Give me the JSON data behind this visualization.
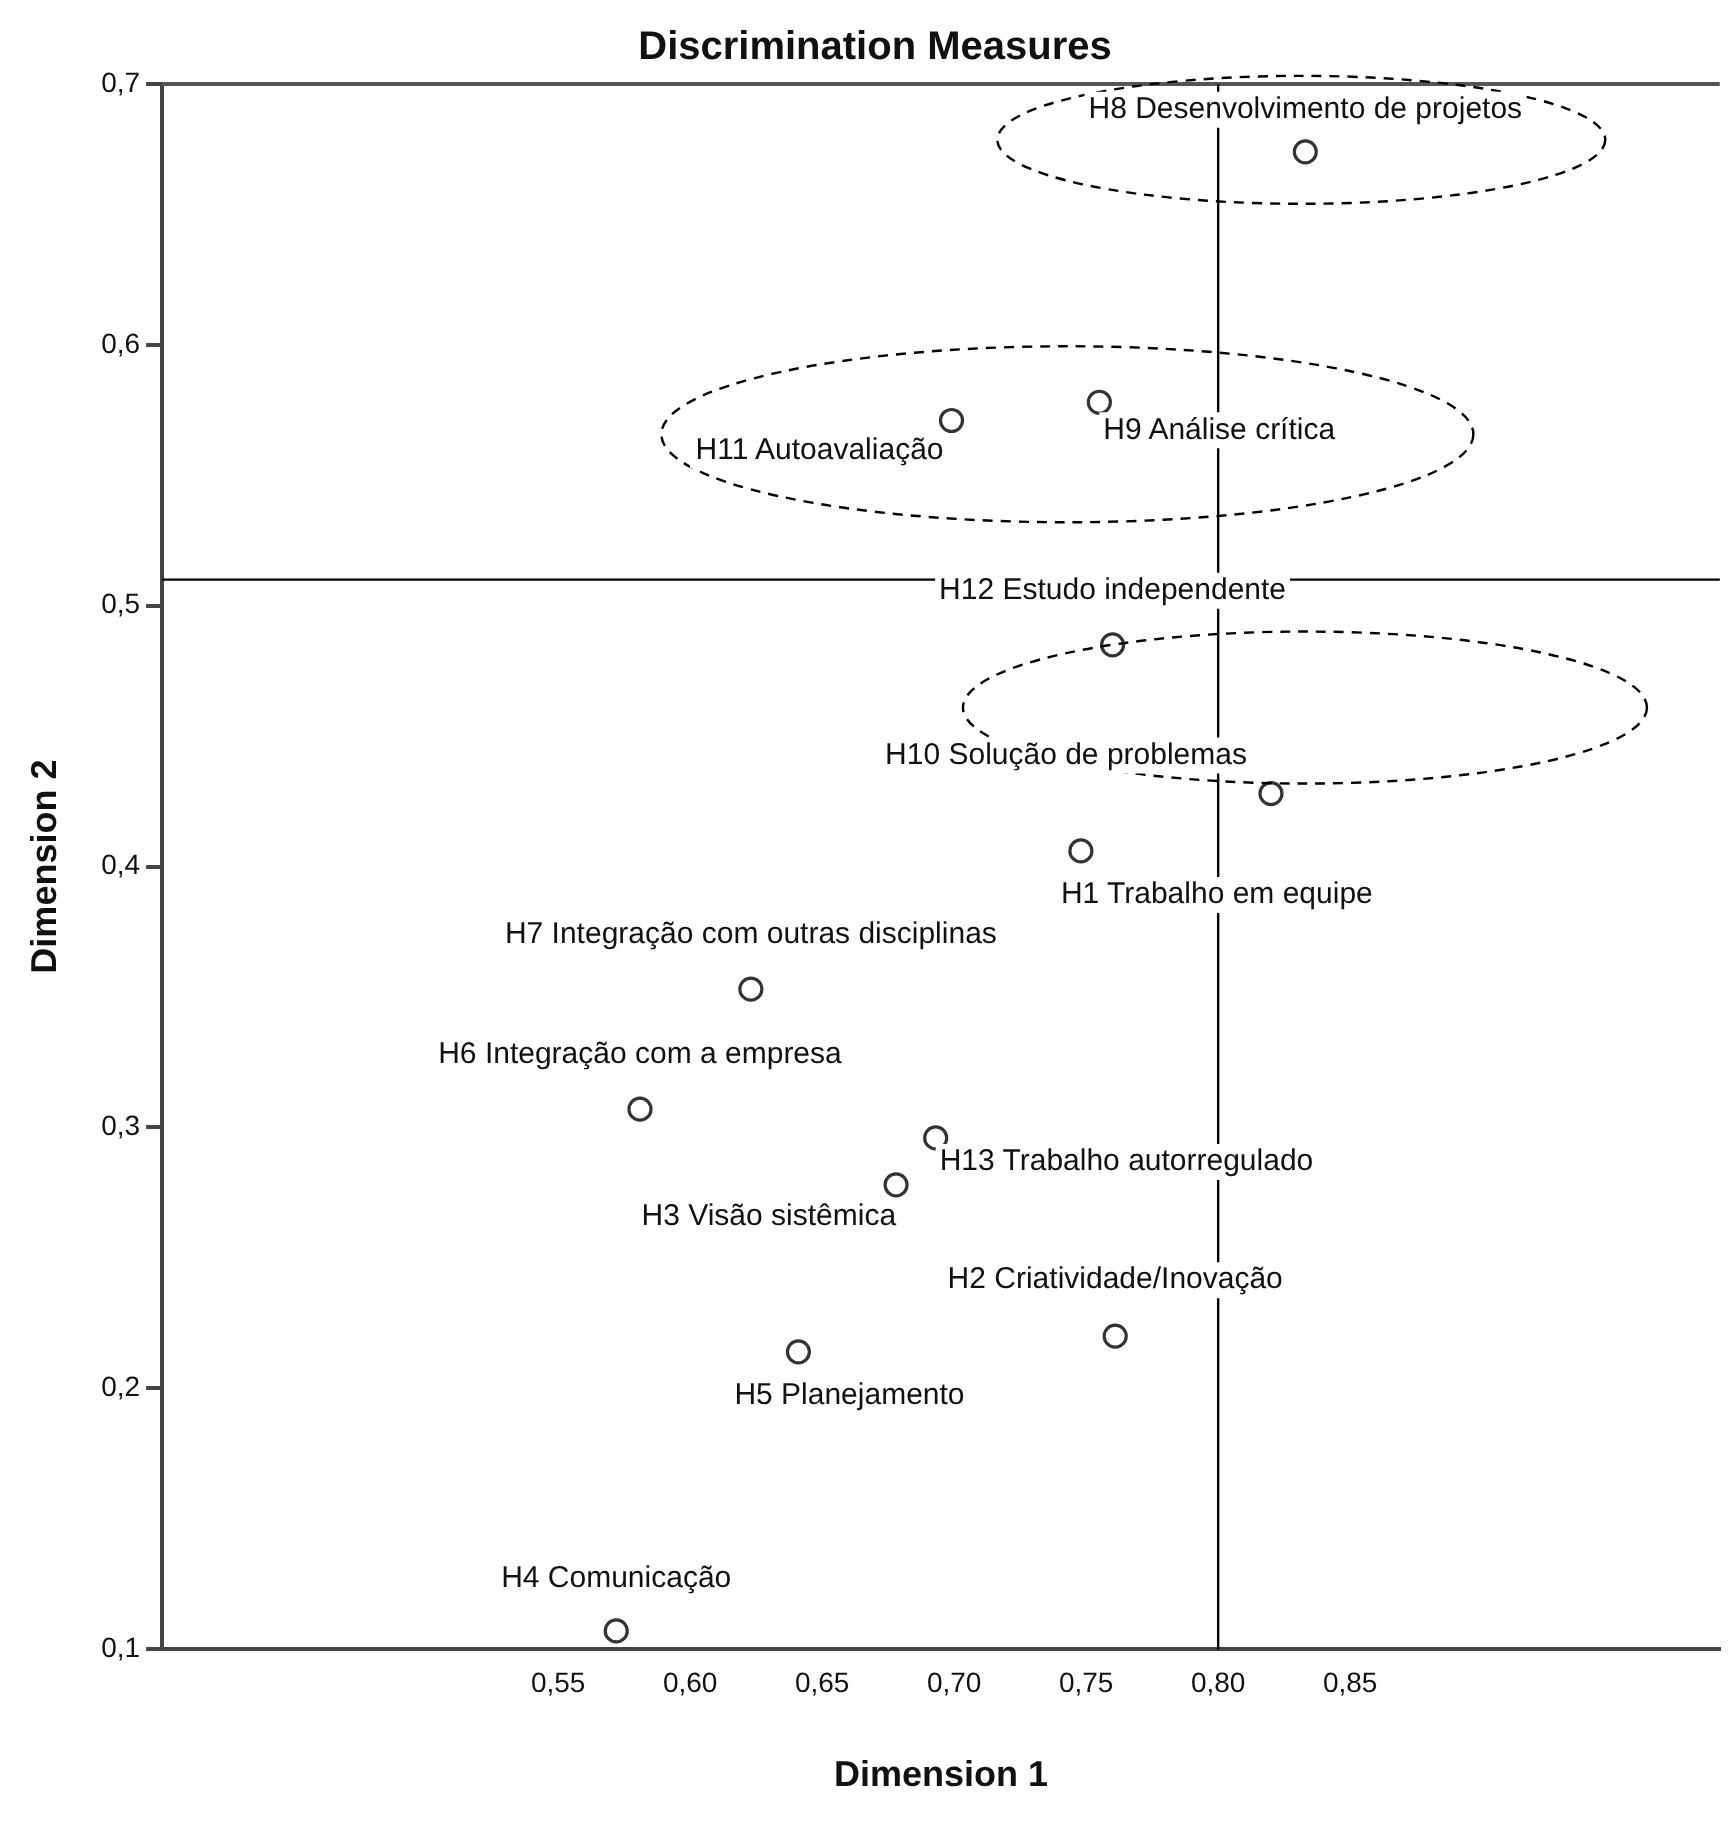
{
  "chart_data": {
    "type": "scatter",
    "title": "Discrimination Measures",
    "xlabel": "Dimension 1",
    "ylabel": "Dimension 2",
    "series": [
      {
        "color": "#333333",
        "x": [
          0.833,
          0.755,
          0.699,
          0.76,
          0.82,
          0.748,
          0.623,
          0.581,
          0.693,
          0.678,
          0.761,
          0.641,
          0.572
        ],
        "values": [
          0.674,
          0.578,
          0.571,
          0.485,
          0.428,
          0.406,
          0.353,
          0.307,
          0.296,
          0.278,
          0.22,
          0.214,
          0.107
        ]
      }
    ],
    "annotations": [
      {
        "text": "H8 Desenvolvimento de projetos",
        "x": 0.833,
        "y": 0.674
      },
      {
        "text": "H9 Análise crítica",
        "x": 0.755,
        "y": 0.578
      },
      {
        "text": "H11 Autoavaliação",
        "x": 0.699,
        "y": 0.571
      },
      {
        "text": "H12 Estudo independente",
        "x": 0.76,
        "y": 0.485
      },
      {
        "text": "H10 Solução de problemas",
        "x": 0.82,
        "y": 0.428
      },
      {
        "text": "H1 Trabalho em equipe",
        "x": 0.748,
        "y": 0.406
      },
      {
        "text": "H7 Integração com outras disciplinas",
        "x": 0.623,
        "y": 0.353
      },
      {
        "text": "H6 Integração com a empresa",
        "x": 0.581,
        "y": 0.307
      },
      {
        "text": "H13 Trabalho autorregulado",
        "x": 0.693,
        "y": 0.296
      },
      {
        "text": "H3 Visão sistêmica",
        "x": 0.678,
        "y": 0.278
      },
      {
        "text": "H2 Criatividade/Inovação",
        "x": 0.761,
        "y": 0.22
      },
      {
        "text": "H5 Planejamento",
        "x": 0.641,
        "y": 0.214
      },
      {
        "text": "H4 Comunicação",
        "x": 0.572,
        "y": 0.107
      }
    ],
    "ref_lines": [
      {
        "axis": "x",
        "value": 0.8,
        "color": "#000000"
      },
      {
        "axis": "y",
        "value": 0.51,
        "color": "#000000"
      }
    ],
    "xlim": [
      0.4,
      0.99
    ],
    "ylim": [
      0.1,
      0.7
    ],
    "xticks": [
      {
        "value": 0.55,
        "label": "0,55"
      },
      {
        "value": 0.6,
        "label": "0,60"
      },
      {
        "value": 0.65,
        "label": "0,65"
      },
      {
        "value": 0.7,
        "label": "0,70"
      },
      {
        "value": 0.75,
        "label": "0,75"
      },
      {
        "value": 0.8,
        "label": "0,80"
      },
      {
        "value": 0.85,
        "label": "0,85"
      }
    ],
    "yticks": [
      {
        "value": 0.1,
        "label": "0,1"
      },
      {
        "value": 0.2,
        "label": "0,2"
      },
      {
        "value": 0.3,
        "label": "0,3"
      },
      {
        "value": 0.4,
        "label": "0,4"
      },
      {
        "value": 0.5,
        "label": "0,5"
      },
      {
        "value": 0.6,
        "label": "0,6"
      },
      {
        "value": 0.7,
        "label": "0,7"
      }
    ],
    "grid": false,
    "legend": false,
    "marker": "circle"
  }
}
